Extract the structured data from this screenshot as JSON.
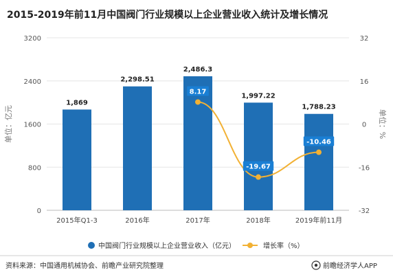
{
  "colors": {
    "bar": "#1f6fb5",
    "line": "#f2b134",
    "line_label_bg": "#1a7fd4"
  },
  "chart_data": {
    "type": "bar",
    "title": "2015-2019年前11月中国阀门行业规模以上企业营业收入统计及增长情况",
    "categories": [
      "2015年Q1-3",
      "2016年",
      "2017年",
      "2018年",
      "2019年前11月"
    ],
    "series": [
      {
        "name": "中国阀门行业规模以上企业营业收入（亿元）",
        "type": "bar",
        "axis": "left",
        "values": [
          1869,
          2298.51,
          2486.3,
          1997.22,
          1788.23
        ],
        "labels": [
          "1,869",
          "2,298.51",
          "2,486.3",
          "1,997.22",
          "1,788.23"
        ]
      },
      {
        "name": "增长率（%）",
        "type": "line",
        "axis": "right",
        "values": [
          null,
          null,
          8.17,
          -19.67,
          -10.46
        ],
        "labels": [
          "",
          "",
          "8.17",
          "-19.67",
          "-10.46"
        ]
      }
    ],
    "ylabel": "单位：亿元",
    "ylim": [
      0,
      3200
    ],
    "yticks": [
      "0",
      "800",
      "1600",
      "2400",
      "3200"
    ],
    "y2label": "单位：%",
    "y2lim": [
      -32,
      32
    ],
    "y2ticks": [
      "-32",
      "-16",
      "0",
      "16",
      "32"
    ],
    "legend_position": "bottom",
    "grid": true
  },
  "footer": {
    "source": "资料来源：中国通用机械协会、前瞻产业研究院整理",
    "brand": "前瞻经济学人APP",
    "brand_icon": "eye-logo-icon"
  }
}
